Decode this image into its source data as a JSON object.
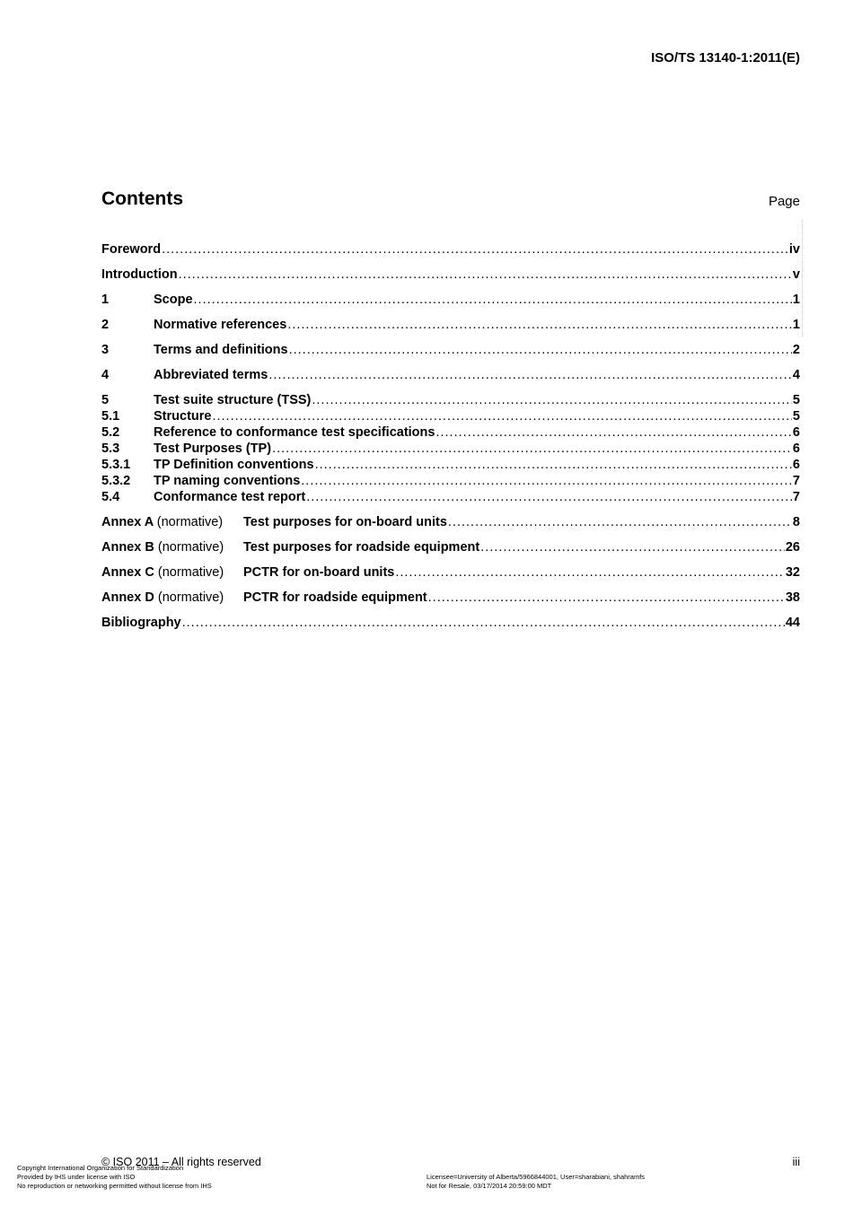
{
  "header": {
    "doc_id": "ISO/TS 13140-1:2011(E)"
  },
  "contents": {
    "title": "Contents",
    "page_label": "Page"
  },
  "toc": [
    {
      "level": 1,
      "num": "",
      "title": "Foreword",
      "page": "iv"
    },
    {
      "level": 1,
      "num": "",
      "title": "Introduction",
      "page": "v"
    },
    {
      "level": 1,
      "num": "1",
      "title": "Scope",
      "page": "1"
    },
    {
      "level": 1,
      "num": "2",
      "title": "Normative references",
      "page": "1"
    },
    {
      "level": 1,
      "num": "3",
      "title": "Terms and definitions",
      "page": "2"
    },
    {
      "level": 1,
      "num": "4",
      "title": "Abbreviated terms",
      "page": "4"
    },
    {
      "level": 1,
      "num": "5",
      "title": "Test suite structure (TSS)",
      "page": "5"
    },
    {
      "level": 2,
      "num": "5.1",
      "title": "Structure",
      "page": "5"
    },
    {
      "level": 2,
      "num": "5.2",
      "title": "Reference to conformance test specifications",
      "page": "6"
    },
    {
      "level": 2,
      "num": "5.3",
      "title": "Test Purposes (TP)",
      "page": "6"
    },
    {
      "level": 2,
      "num": "5.3.1",
      "title": "TP Definition conventions",
      "page": "6"
    },
    {
      "level": 2,
      "num": "5.3.2",
      "title": "TP naming conventions",
      "page": "7"
    },
    {
      "level": 2,
      "num": "5.4",
      "title": "Conformance test report",
      "page": "7"
    }
  ],
  "annexes": [
    {
      "annex": "Annex A",
      "type": "(normative)",
      "title": "Test purposes for on-board units",
      "page": "8"
    },
    {
      "annex": "Annex B",
      "type": "(normative)",
      "title": "Test purposes for roadside equipment",
      "page": "26"
    },
    {
      "annex": "Annex C",
      "type": "(normative)",
      "title": "PCTR for on-board units",
      "page": "32"
    },
    {
      "annex": "Annex D",
      "type": "(normative)",
      "title": "PCTR for roadside equipment",
      "page": "38"
    }
  ],
  "bibliography": {
    "title": "Bibliography",
    "page": "44"
  },
  "footer": {
    "copyright": "© ISO 2011 – All rights reserved",
    "page_number": "iii",
    "license_left": [
      "Copyright International Organization for Standardization",
      "Provided by IHS under license with ISO",
      "No reproduction or networking permitted without license from IHS"
    ],
    "license_right": [
      "Licensee=University of Alberta/5966844001, User=sharabiani, shahramfs",
      "Not for Resale, 03/17/2014 20:59:00 MDT"
    ]
  }
}
